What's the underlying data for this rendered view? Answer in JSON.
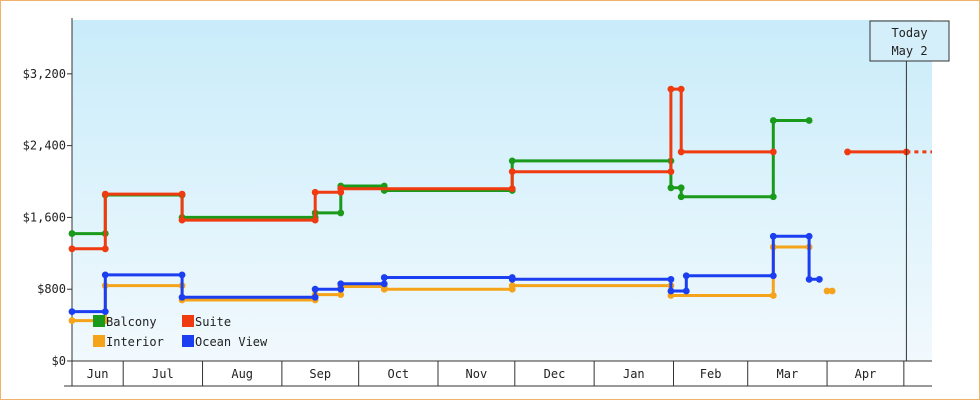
{
  "chart_data": {
    "type": "line",
    "step": true,
    "x_unit": "date",
    "ylim": [
      0,
      3800
    ],
    "yticks": [
      {
        "value": 0,
        "label": "$0"
      },
      {
        "value": 800,
        "label": "$800"
      },
      {
        "value": 1600,
        "label": "$1,600"
      },
      {
        "value": 2400,
        "label": "$2,400"
      },
      {
        "value": 3200,
        "label": "$3,200"
      }
    ],
    "xlim": [
      "2023-06-11",
      "2024-05-12"
    ],
    "months": [
      {
        "label": "Jun",
        "start": "2023-06-11",
        "end": "2023-07-01"
      },
      {
        "label": "Jul",
        "start": "2023-07-01",
        "end": "2023-08-01"
      },
      {
        "label": "Aug",
        "start": "2023-08-01",
        "end": "2023-09-01"
      },
      {
        "label": "Sep",
        "start": "2023-09-01",
        "end": "2023-10-01"
      },
      {
        "label": "Oct",
        "start": "2023-10-01",
        "end": "2023-11-01"
      },
      {
        "label": "Nov",
        "start": "2023-11-01",
        "end": "2023-12-01"
      },
      {
        "label": "Dec",
        "start": "2023-12-01",
        "end": "2024-01-01"
      },
      {
        "label": "Jan",
        "start": "2024-01-01",
        "end": "2024-02-01"
      },
      {
        "label": "Feb",
        "start": "2024-02-01",
        "end": "2024-03-01"
      },
      {
        "label": "Mar",
        "start": "2024-03-01",
        "end": "2024-04-01"
      },
      {
        "label": "Apr",
        "start": "2024-04-01",
        "end": "2024-05-01"
      }
    ],
    "today": {
      "line1": "Today",
      "line2": "May 2",
      "date": "2024-05-02"
    },
    "legend": {
      "position": "bottom-left"
    },
    "series": [
      {
        "name": "Balcony",
        "color": "#1a9a1a",
        "points": [
          [
            "2023-06-11",
            1420
          ],
          [
            "2023-06-24",
            1420
          ],
          [
            "2023-06-24",
            1850
          ],
          [
            "2023-07-24",
            1850
          ],
          [
            "2023-07-24",
            1600
          ],
          [
            "2023-09-14",
            1600
          ],
          [
            "2023-09-14",
            1650
          ],
          [
            "2023-09-24",
            1650
          ],
          [
            "2023-09-24",
            1950
          ],
          [
            "2023-10-11",
            1950
          ],
          [
            "2023-10-11",
            1900
          ],
          [
            "2023-11-30",
            1900
          ],
          [
            "2023-11-30",
            2230
          ],
          [
            "2024-01-31",
            2230
          ],
          [
            "2024-01-31",
            1930
          ],
          [
            "2024-02-04",
            1930
          ],
          [
            "2024-02-04",
            1830
          ],
          [
            "2024-03-11",
            1830
          ],
          [
            "2024-03-11",
            2680
          ],
          [
            "2024-03-25",
            2680
          ]
        ]
      },
      {
        "name": "Suite",
        "color": "#f03a10",
        "points": [
          [
            "2023-06-11",
            1250
          ],
          [
            "2023-06-24",
            1250
          ],
          [
            "2023-06-24",
            1860
          ],
          [
            "2023-07-24",
            1860
          ],
          [
            "2023-07-24",
            1570
          ],
          [
            "2023-09-14",
            1570
          ],
          [
            "2023-09-14",
            1880
          ],
          [
            "2023-09-24",
            1880
          ],
          [
            "2023-09-24",
            1920
          ],
          [
            "2023-11-30",
            1920
          ],
          [
            "2023-11-30",
            2110
          ],
          [
            "2024-01-31",
            2110
          ],
          [
            "2024-01-31",
            3030
          ],
          [
            "2024-02-04",
            3030
          ],
          [
            "2024-02-04",
            2330
          ],
          [
            "2024-03-11",
            2330
          ]
        ],
        "segments": [
          {
            "points": [
              [
                "2024-04-09",
                2330
              ],
              [
                "2024-05-02",
                2330
              ]
            ]
          }
        ],
        "projection": [
          [
            "2024-05-02",
            2330
          ],
          [
            "2024-05-12",
            2330
          ]
        ]
      },
      {
        "name": "Interior",
        "color": "#f5a41a",
        "points": [
          [
            "2023-06-11",
            450
          ],
          [
            "2023-06-24",
            450
          ],
          [
            "2023-06-24",
            840
          ],
          [
            "2023-07-24",
            840
          ],
          [
            "2023-07-24",
            680
          ],
          [
            "2023-09-14",
            680
          ],
          [
            "2023-09-14",
            740
          ],
          [
            "2023-09-24",
            740
          ],
          [
            "2023-09-24",
            830
          ],
          [
            "2023-10-11",
            830
          ],
          [
            "2023-10-11",
            800
          ],
          [
            "2023-11-30",
            800
          ],
          [
            "2023-11-30",
            840
          ],
          [
            "2024-01-31",
            840
          ],
          [
            "2024-01-31",
            730
          ],
          [
            "2024-03-11",
            730
          ],
          [
            "2024-03-11",
            1270
          ],
          [
            "2024-03-25",
            1270
          ]
        ],
        "segments": [
          {
            "points": [
              [
                "2024-04-01",
                780
              ],
              [
                "2024-04-03",
                780
              ]
            ]
          }
        ]
      },
      {
        "name": "Ocean View",
        "color": "#1a3ef0",
        "points": [
          [
            "2023-06-11",
            550
          ],
          [
            "2023-06-24",
            550
          ],
          [
            "2023-06-24",
            960
          ],
          [
            "2023-07-24",
            960
          ],
          [
            "2023-07-24",
            710
          ],
          [
            "2023-09-14",
            710
          ],
          [
            "2023-09-14",
            800
          ],
          [
            "2023-09-24",
            800
          ],
          [
            "2023-09-24",
            860
          ],
          [
            "2023-10-11",
            860
          ],
          [
            "2023-10-11",
            930
          ],
          [
            "2023-11-30",
            930
          ],
          [
            "2023-11-30",
            910
          ],
          [
            "2024-01-31",
            910
          ],
          [
            "2024-01-31",
            780
          ],
          [
            "2024-02-06",
            780
          ],
          [
            "2024-02-06",
            950
          ],
          [
            "2024-03-11",
            950
          ],
          [
            "2024-03-11",
            1390
          ],
          [
            "2024-03-25",
            1390
          ],
          [
            "2024-03-25",
            910
          ],
          [
            "2024-03-29",
            910
          ]
        ]
      }
    ]
  }
}
